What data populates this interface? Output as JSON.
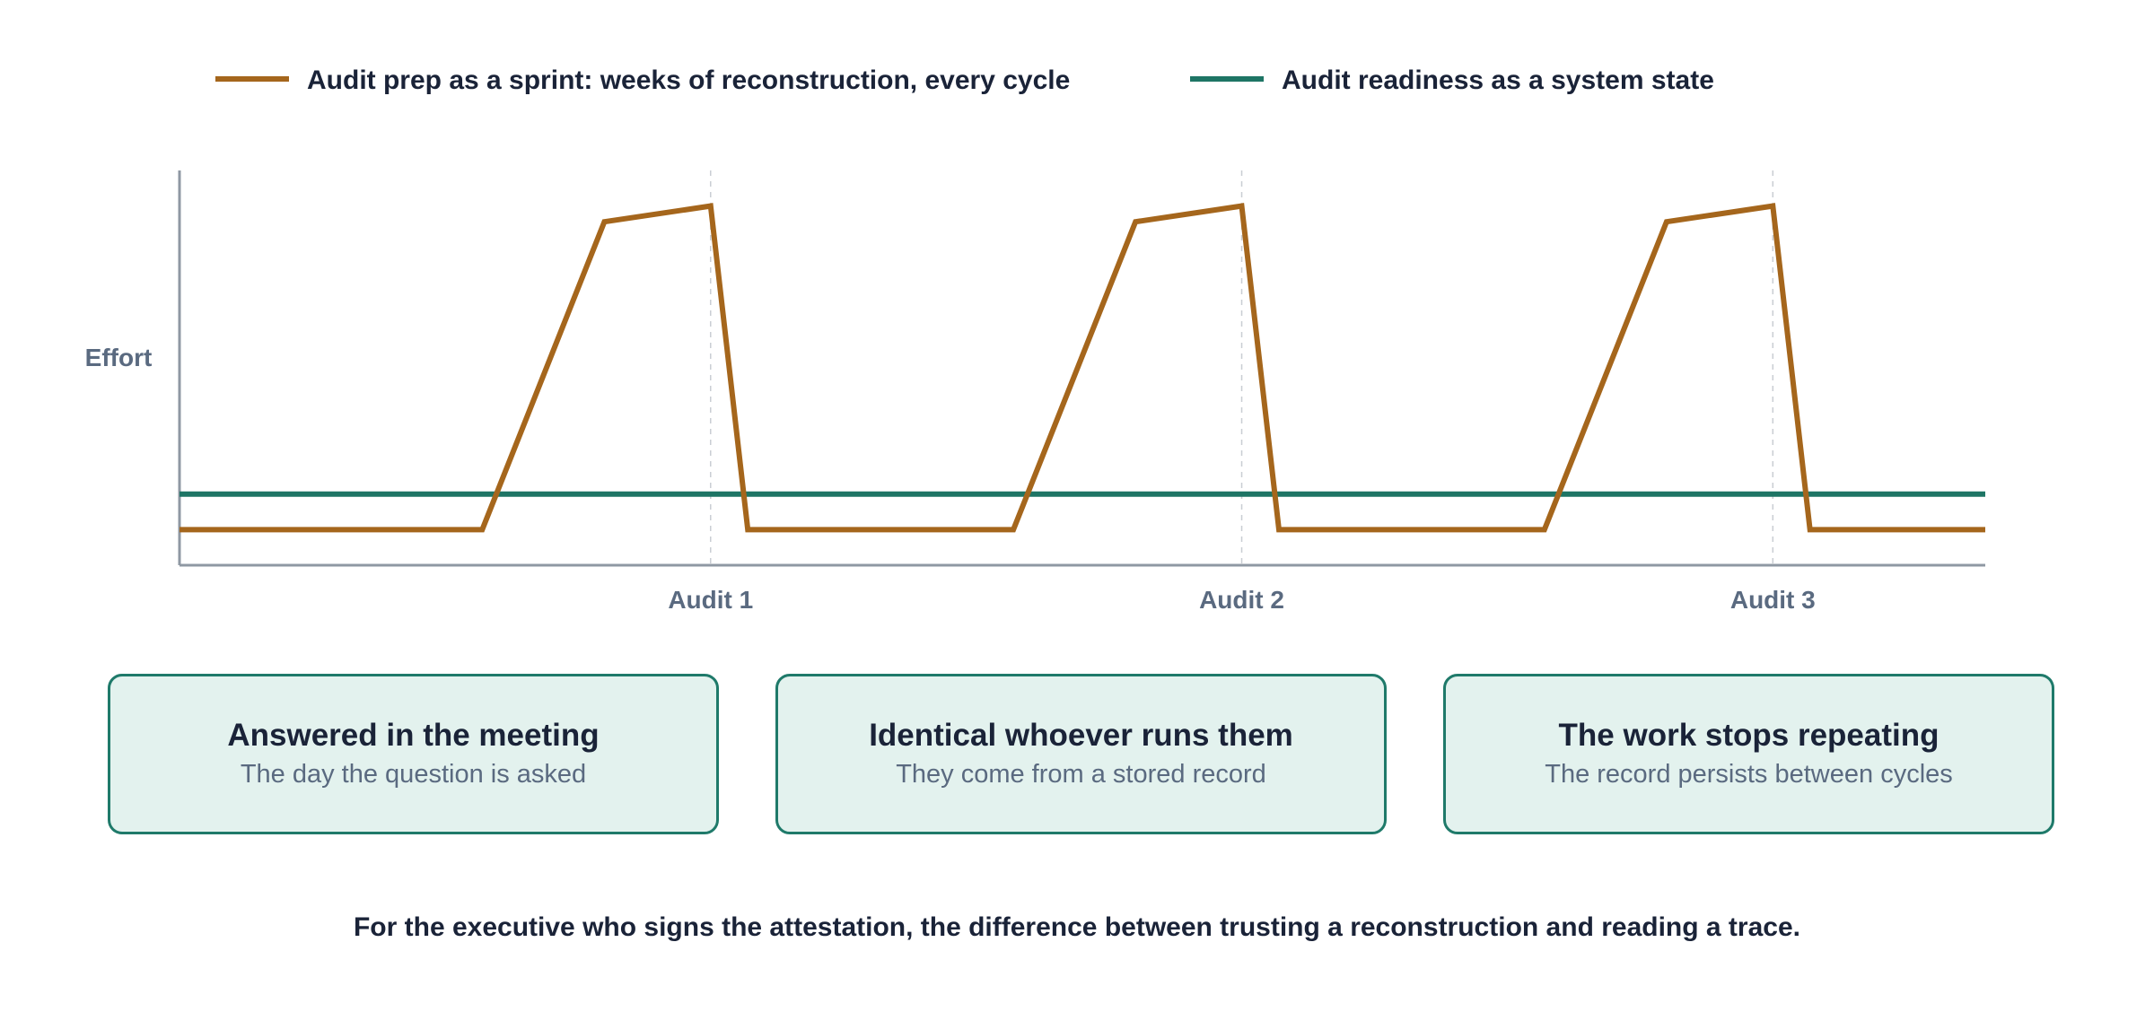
{
  "chart_data": {
    "type": "line",
    "title": "",
    "xlabel": "",
    "ylabel": "Effort",
    "legend_position": "top",
    "grid": false,
    "x_ticks": [
      {
        "label": "Audit 1",
        "x": 1
      },
      {
        "label": "Audit 2",
        "x": 2
      },
      {
        "label": "Audit 3",
        "x": 3
      }
    ],
    "xlim": [
      0,
      3.4
    ],
    "ylim": [
      0,
      100
    ],
    "series": [
      {
        "name": "Audit prep as a sprint: weeks of reconstruction, every cycle",
        "color": "#a5661c",
        "points": [
          [
            0,
            9
          ],
          [
            0.57,
            9
          ],
          [
            0.8,
            87
          ],
          [
            1.0,
            91
          ],
          [
            1.07,
            9
          ],
          [
            1.57,
            9
          ],
          [
            1.8,
            87
          ],
          [
            2.0,
            91
          ],
          [
            2.07,
            9
          ],
          [
            2.57,
            9
          ],
          [
            2.8,
            87
          ],
          [
            3.0,
            91
          ],
          [
            3.07,
            9
          ],
          [
            3.4,
            9
          ]
        ]
      },
      {
        "name": "Audit readiness as a system state",
        "color": "#1e7565",
        "points": [
          [
            0,
            18
          ],
          [
            3.4,
            18
          ]
        ]
      }
    ]
  },
  "cards": [
    {
      "title": "Answered in the meeting",
      "subtitle": "The day the question is asked"
    },
    {
      "title": "Identical whoever runs them",
      "subtitle": "They come from a stored record"
    },
    {
      "title": "The work stops repeating",
      "subtitle": "The record persists between cycles"
    }
  ],
  "footer": "For the executive who signs the attestation, the difference between trusting a reconstruction and reading a trace."
}
